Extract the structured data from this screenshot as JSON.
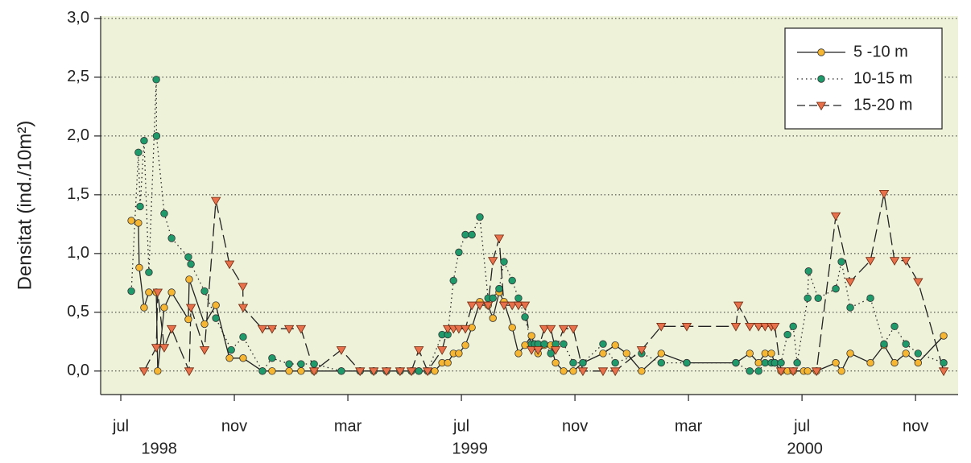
{
  "chart_data": {
    "type": "line",
    "ylabel": "Densitat (ind./10m²)",
    "xlim": [
      -0.71,
      29.5
    ],
    "ylim": [
      -0.2,
      3.02
    ],
    "xticks": [
      {
        "value": 0,
        "label": "jul"
      },
      {
        "value": 4,
        "label": "nov"
      },
      {
        "value": 8,
        "label": "mar"
      },
      {
        "value": 12,
        "label": "jul"
      },
      {
        "value": 16,
        "label": "nov"
      },
      {
        "value": 20,
        "label": "mar"
      },
      {
        "value": 24,
        "label": "jul"
      },
      {
        "value": 28,
        "label": "nov"
      }
    ],
    "x_year_labels": [
      {
        "value": 1.35,
        "label": "1998"
      },
      {
        "value": 12.3,
        "label": "1999"
      },
      {
        "value": 24.1,
        "label": "2000"
      }
    ],
    "yticks": [
      {
        "value": 0,
        "label": "0,0"
      },
      {
        "value": 0.5,
        "label": "0,5"
      },
      {
        "value": 1,
        "label": "1,0"
      },
      {
        "value": 1.5,
        "label": "1,5"
      },
      {
        "value": 2,
        "label": "2,0"
      },
      {
        "value": 2.5,
        "label": "2,5"
      },
      {
        "value": 3,
        "label": "3,0"
      }
    ],
    "grid": true,
    "legend_position": "upper right",
    "background": "#eef2d9",
    "series": [
      {
        "name": "5 -10 m",
        "color": "#f6b632",
        "line_style": "solid",
        "marker": "circle",
        "x": [
          0.37,
          0.62,
          0.65,
          0.82,
          0.99,
          1.25,
          1.3,
          1.53,
          1.79,
          2.38,
          2.41,
          2.95,
          3.35,
          3.83,
          4.31,
          4.99,
          5.33,
          5.93,
          6.35,
          6.81,
          7.77,
          8.43,
          8.91,
          9.36,
          9.84,
          10.24,
          10.5,
          10.81,
          11.06,
          11.32,
          11.52,
          11.72,
          11.91,
          12.14,
          12.37,
          12.65,
          12.94,
          13.11,
          13.33,
          13.5,
          13.79,
          14.01,
          14.24,
          14.47,
          14.58,
          14.7,
          14.92,
          15.15,
          15.32,
          15.6,
          15.94,
          16.28,
          16.99,
          17.42,
          17.82,
          18.35,
          19.04,
          19.94,
          21.67,
          22.16,
          22.47,
          22.7,
          22.92,
          23.04,
          23.26,
          23.49,
          23.69,
          24.06,
          24.2,
          24.51,
          25.19,
          25.39,
          25.7,
          26.41,
          26.89,
          27.26,
          27.66,
          28.09,
          28.99
        ],
        "values": [
          1.28,
          1.26,
          0.88,
          0.54,
          0.67,
          0.67,
          0,
          0.54,
          0.67,
          0.44,
          0.78,
          0.4,
          0.56,
          0.11,
          0.11,
          0,
          0,
          0,
          0,
          0,
          0,
          0,
          0,
          0,
          0,
          0,
          0,
          0,
          0,
          0.07,
          0.07,
          0.15,
          0.15,
          0.22,
          0.37,
          0.59,
          0.56,
          0.45,
          0.67,
          0.59,
          0.37,
          0.15,
          0.22,
          0.3,
          0.22,
          0.15,
          0.22,
          0.22,
          0.07,
          0,
          0,
          0.07,
          0.15,
          0.22,
          0.15,
          0,
          0.15,
          0.07,
          0.07,
          0.15,
          0.07,
          0.15,
          0.15,
          0.07,
          0,
          0,
          0,
          0,
          0,
          0,
          0.07,
          0,
          0.15,
          0.07,
          0.22,
          0.07,
          0.15,
          0.07,
          0.3
        ]
      },
      {
        "name": "10-15 m",
        "color": "#1f9a6b",
        "line_style": "dotted",
        "marker": "circle",
        "x": [
          0.37,
          0.62,
          0.68,
          0.82,
          0.99,
          1.25,
          1.26,
          1.53,
          1.79,
          2.38,
          2.47,
          2.95,
          3.35,
          3.89,
          4.31,
          4.99,
          5.33,
          5.93,
          6.35,
          6.81,
          7.77,
          8.43,
          8.91,
          9.36,
          9.84,
          10.24,
          10.5,
          10.81,
          11.32,
          11.52,
          11.72,
          11.91,
          12.14,
          12.37,
          12.65,
          12.94,
          13.11,
          13.33,
          13.5,
          13.79,
          14.01,
          14.24,
          14.47,
          14.58,
          14.7,
          14.92,
          15.15,
          15.32,
          15.6,
          15.94,
          16.28,
          16.99,
          17.42,
          18.35,
          19.04,
          19.94,
          21.67,
          22.16,
          22.47,
          22.7,
          22.92,
          23.04,
          23.26,
          23.49,
          23.69,
          23.83,
          24.2,
          24.23,
          24.57,
          25.19,
          25.39,
          25.7,
          26.41,
          26.89,
          27.26,
          27.66,
          28.09,
          28.99
        ],
        "values": [
          0.68,
          1.86,
          1.4,
          1.96,
          0.84,
          2.48,
          2.0,
          1.34,
          1.13,
          0.97,
          0.91,
          0.68,
          0.45,
          0.18,
          0.29,
          0,
          0.11,
          0.06,
          0.06,
          0.06,
          0,
          0,
          0,
          0,
          0,
          0,
          0,
          0,
          0.31,
          0.31,
          0.77,
          1.01,
          1.16,
          1.16,
          1.31,
          0.62,
          0.62,
          0.7,
          0.93,
          0.77,
          0.62,
          0.46,
          0.23,
          0.23,
          0.23,
          0.23,
          0.15,
          0.23,
          0.23,
          0.07,
          0.07,
          0.23,
          0.07,
          0.15,
          0.07,
          0.07,
          0.07,
          0,
          0,
          0.07,
          0.07,
          0.07,
          0.07,
          0.31,
          0.38,
          0.07,
          0.62,
          0.85,
          0.62,
          0.7,
          0.93,
          0.54,
          0.62,
          0.23,
          0.38,
          0.23,
          0.15,
          0.07
        ]
      },
      {
        "name": "15-20 m",
        "color": "#e8704a",
        "line_style": "dashed",
        "marker": "triangle",
        "x": [
          0.82,
          1.25,
          1.3,
          1.53,
          1.79,
          2.41,
          2.47,
          2.95,
          3.35,
          3.83,
          4.3,
          4.31,
          4.99,
          5.33,
          5.93,
          6.35,
          6.81,
          7.77,
          8.43,
          8.91,
          9.36,
          9.84,
          10.24,
          10.5,
          10.81,
          11.32,
          11.52,
          11.72,
          11.91,
          12.14,
          12.37,
          12.65,
          12.94,
          13.11,
          13.33,
          13.5,
          13.79,
          14.01,
          14.24,
          14.47,
          14.7,
          14.92,
          15.15,
          15.32,
          15.6,
          15.94,
          16.28,
          16.99,
          17.42,
          18.35,
          19.04,
          19.94,
          21.67,
          21.76,
          22.16,
          22.47,
          22.7,
          22.92,
          23.04,
          23.26,
          23.69,
          24.51,
          25.19,
          25.7,
          26.41,
          26.89,
          27.26,
          27.66,
          28.09,
          28.99
        ],
        "values": [
          0,
          0.2,
          0.67,
          0.2,
          0.36,
          0,
          0.54,
          0.18,
          1.45,
          0.91,
          0.72,
          0.54,
          0.36,
          0.36,
          0.36,
          0.36,
          0,
          0.18,
          0,
          0,
          0,
          0,
          0,
          0.18,
          0,
          0.18,
          0.36,
          0.36,
          0.36,
          0.36,
          0.56,
          0.56,
          0.56,
          0.94,
          1.13,
          0.56,
          0.56,
          0.56,
          0.56,
          0.18,
          0.18,
          0.36,
          0.36,
          0.18,
          0.36,
          0.36,
          0,
          0,
          0,
          0.18,
          0.38,
          0.38,
          0.38,
          0.56,
          0.38,
          0.38,
          0.38,
          0.38,
          0.38,
          0,
          0,
          0,
          1.32,
          0.76,
          0.94,
          1.51,
          0.94,
          0.94,
          0.76,
          0
        ]
      }
    ]
  }
}
